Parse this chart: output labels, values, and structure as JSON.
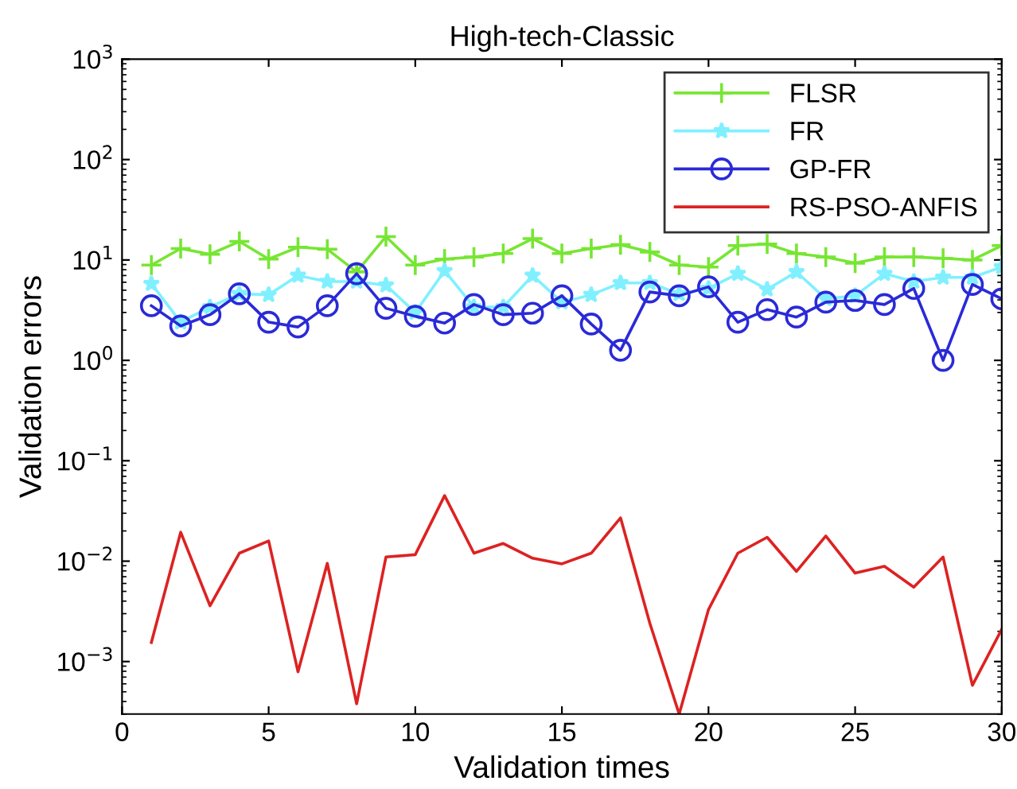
{
  "chart_data": {
    "type": "line",
    "title": "High-tech-Classic",
    "xlabel": "Validation times",
    "ylabel": "Validation errors",
    "x": [
      1,
      2,
      3,
      4,
      5,
      6,
      7,
      8,
      9,
      10,
      11,
      12,
      13,
      14,
      15,
      16,
      17,
      18,
      19,
      20,
      21,
      22,
      23,
      24,
      25,
      26,
      27,
      28,
      29,
      30
    ],
    "series": [
      {
        "name": "FLSR",
        "color": "#77e633",
        "marker": "cross",
        "values": [
          8.9,
          13,
          11.4,
          15.3,
          10.2,
          13.4,
          12.8,
          7.6,
          17.1,
          8.9,
          10.2,
          10.7,
          11.6,
          16.3,
          11.6,
          13,
          14.2,
          12,
          8.9,
          8.5,
          13.9,
          14.4,
          11.6,
          10.7,
          9.3,
          10.7,
          10.7,
          10.4,
          10,
          13.9
        ]
      },
      {
        "name": "FR",
        "color": "#80f0ff",
        "marker": "star",
        "values": [
          5.8,
          2.4,
          3.4,
          4.6,
          4.5,
          7.0,
          6.1,
          6.1,
          5.6,
          3.0,
          7.8,
          3.4,
          3.4,
          7.0,
          3.8,
          4.5,
          5.9,
          5.9,
          4.6,
          5.2,
          7.3,
          5.1,
          7.6,
          4.1,
          4.4,
          7.3,
          6.1,
          6.7,
          6.7,
          8.5
        ]
      },
      {
        "name": "GP-FR",
        "color": "#2a2ad8",
        "marker": "circle",
        "values": [
          3.5,
          2.2,
          2.85,
          4.6,
          2.4,
          2.15,
          3.5,
          7.3,
          3.3,
          2.75,
          2.35,
          3.6,
          2.85,
          2.95,
          4.4,
          2.3,
          1.26,
          4.8,
          4.4,
          5.4,
          2.4,
          3.2,
          2.7,
          3.8,
          3.95,
          3.6,
          5.2,
          1.0,
          5.7,
          4.1
        ]
      },
      {
        "name": "RS-PSO-ANFIS",
        "color": "#dd2222",
        "marker": "none",
        "values": [
          0.00155,
          0.0194,
          0.0036,
          0.012,
          0.0159,
          0.00079,
          0.0095,
          0.00038,
          0.011,
          0.0116,
          0.045,
          0.012,
          0.015,
          0.0107,
          0.0094,
          0.012,
          0.027,
          0.0024,
          0.0003,
          0.0033,
          0.012,
          0.0173,
          0.0079,
          0.0178,
          0.0076,
          0.0089,
          0.0055,
          0.011,
          0.00058,
          0.0021
        ]
      }
    ],
    "log": "y",
    "xlim": [
      0,
      30
    ],
    "xticks": [
      0,
      5,
      10,
      15,
      20,
      25,
      30
    ],
    "ylim": [
      0.0003,
      1000
    ],
    "yticks": [
      {
        "value": 0.001,
        "label": "10$^{−3}$"
      },
      {
        "value": 0.01,
        "label": "10$^{−2}$"
      },
      {
        "value": 0.1,
        "label": "10$^{−1}$"
      },
      {
        "value": 1,
        "label": "10$^{0}$"
      },
      {
        "value": 10,
        "label": "10$^{1}$"
      },
      {
        "value": 100,
        "label": "10$^{2}$"
      },
      {
        "value": 1000,
        "label": "10$^{3}$"
      }
    ],
    "legend": "top right",
    "grid": false,
    "line_style": "solid"
  }
}
